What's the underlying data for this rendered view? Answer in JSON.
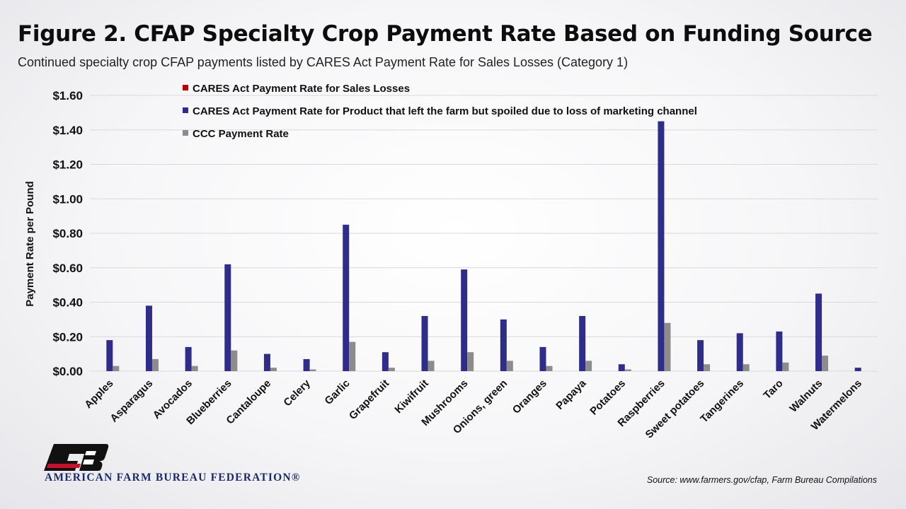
{
  "page": {
    "title": "Figure 2. CFAP Specialty Crop Payment Rate Based on Funding Source",
    "subtitle": "Continued specialty crop CFAP payments listed by CARES Act Payment Rate for Sales Losses (Category 1)",
    "source": "Source: www.farmers.gov/cfap, Farm Bureau Compilations",
    "logo_text": "AMERICAN FARM BUREAU FEDERATION®",
    "logo_letters": "FB"
  },
  "colors": {
    "sales_losses": "#c00000",
    "spoiled": "#2e2e8a",
    "ccc": "#8c8c8c",
    "gridline": "#d9d9d9",
    "logo_black": "#111111",
    "logo_red": "#c8102e"
  },
  "chart_data": {
    "type": "bar",
    "ylabel": "Payment Rate per Pound",
    "xlabel": "",
    "ylim": [
      0,
      1.6
    ],
    "yticks": [
      0,
      0.2,
      0.4,
      0.6,
      0.8,
      1.0,
      1.2,
      1.4,
      1.6
    ],
    "ytick_labels": [
      "$0.00",
      "$0.20",
      "$0.40",
      "$0.60",
      "$0.80",
      "$1.00",
      "$1.20",
      "$1.40",
      "$1.60"
    ],
    "grid": true,
    "legend_position": "top-left",
    "categories": [
      "Apples",
      "Asparagus",
      "Avocados",
      "Blueberries",
      "Cantaloupe",
      "Celery",
      "Garlic",
      "Grapefruit",
      "Kiwifruit",
      "Mushrooms",
      "Onions, green",
      "Oranges",
      "Papaya",
      "Potatoes",
      "Raspberries",
      "Sweet potatoes",
      "Tangerines",
      "Taro",
      "Walnuts",
      "Watermelons"
    ],
    "series": [
      {
        "name": "CARES Act Payment Rate for Sales Losses",
        "color_key": "sales_losses",
        "values": [
          0,
          0,
          0,
          0,
          0,
          0,
          0,
          0,
          0,
          0,
          0,
          0,
          0,
          0,
          0,
          0,
          0,
          0,
          0,
          0
        ]
      },
      {
        "name": "CARES Act Payment Rate for Product that left the farm but spoiled due to loss of marketing channel",
        "color_key": "spoiled",
        "values": [
          0.18,
          0.38,
          0.14,
          0.62,
          0.1,
          0.07,
          0.85,
          0.11,
          0.32,
          0.59,
          0.3,
          0.14,
          0.32,
          0.04,
          1.45,
          0.18,
          0.22,
          0.23,
          0.45,
          0.02
        ]
      },
      {
        "name": "CCC Payment Rate",
        "color_key": "ccc",
        "values": [
          0.03,
          0.07,
          0.03,
          0.12,
          0.02,
          0.01,
          0.17,
          0.02,
          0.06,
          0.11,
          0.06,
          0.03,
          0.06,
          0.01,
          0.28,
          0.04,
          0.04,
          0.05,
          0.09,
          0.0
        ]
      }
    ]
  }
}
